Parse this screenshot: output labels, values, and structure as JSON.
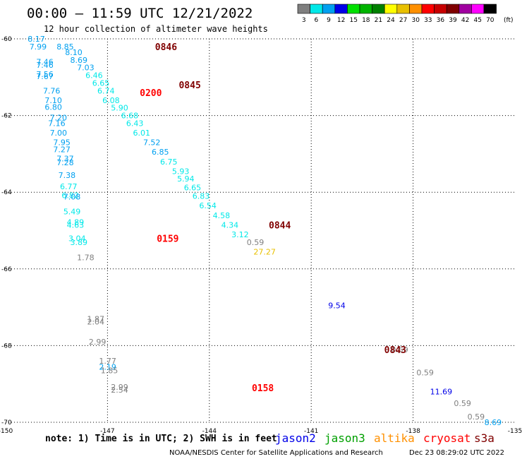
{
  "header": {
    "title": "00:00 — 11:59 UTC 12/21/2022",
    "subtitle": "12 hour collection of altimeter wave heights"
  },
  "colorbar": {
    "unit": "(ft)",
    "bins": [
      {
        "label": "3",
        "color": "#7f7f7f"
      },
      {
        "label": "6",
        "color": "#00e8e8"
      },
      {
        "label": "9",
        "color": "#00a0f0"
      },
      {
        "label": "12",
        "color": "#0000e8"
      },
      {
        "label": "15",
        "color": "#00e000"
      },
      {
        "label": "18",
        "color": "#00b400"
      },
      {
        "label": "21",
        "color": "#008000"
      },
      {
        "label": "24",
        "color": "#ffff00"
      },
      {
        "label": "27",
        "color": "#e8c000"
      },
      {
        "label": "30",
        "color": "#ff9000"
      },
      {
        "label": "33",
        "color": "#ff0000"
      },
      {
        "label": "36",
        "color": "#c80000"
      },
      {
        "label": "39",
        "color": "#800000"
      },
      {
        "label": "42",
        "color": "#a000a0"
      },
      {
        "label": "45",
        "color": "#ff00ff"
      },
      {
        "label": "70",
        "color": "#000000"
      }
    ]
  },
  "chart_data": {
    "type": "scatter",
    "xlim": [
      -150,
      -135
    ],
    "ylim": [
      -70,
      -60
    ],
    "x_ticks": [
      "-150",
      "-147",
      "-144",
      "-141",
      "-138",
      "-135"
    ],
    "y_ticks": [
      "-60",
      "-62",
      "-64",
      "-66",
      "-68",
      "-70"
    ],
    "grid": true,
    "points": [
      {
        "lon": -149.35,
        "lat": -60.0,
        "value": "8.17",
        "color": "#00a0f0"
      },
      {
        "lon": -149.3,
        "lat": -60.2,
        "value": "7.99",
        "color": "#00a0f0"
      },
      {
        "lon": -148.5,
        "lat": -60.2,
        "value": "8.85",
        "color": "#00a0f0"
      },
      {
        "lon": -148.25,
        "lat": -60.35,
        "value": "8.10",
        "color": "#00a0f0"
      },
      {
        "lon": -149.1,
        "lat": -60.6,
        "value": "7.46",
        "color": "#00a0f0"
      },
      {
        "lon": -149.1,
        "lat": -60.68,
        "value": "7.46",
        "color": "#00a0f0"
      },
      {
        "lon": -148.1,
        "lat": -60.55,
        "value": "8.69",
        "color": "#00a0f0"
      },
      {
        "lon": -147.9,
        "lat": -60.75,
        "value": "7.03",
        "color": "#00a0f0"
      },
      {
        "lon": -149.1,
        "lat": -60.92,
        "value": "7.56",
        "color": "#00a0f0"
      },
      {
        "lon": -149.1,
        "lat": -60.98,
        "value": "7.67",
        "color": "#00a0f0"
      },
      {
        "lon": -147.65,
        "lat": -60.95,
        "value": "6.46",
        "color": "#00e8e8"
      },
      {
        "lon": -147.45,
        "lat": -61.15,
        "value": "6.65",
        "color": "#00e8e8"
      },
      {
        "lon": -148.9,
        "lat": -61.35,
        "value": "7.76",
        "color": "#00a0f0"
      },
      {
        "lon": -147.3,
        "lat": -61.35,
        "value": "6.74",
        "color": "#00e8e8"
      },
      {
        "lon": -148.85,
        "lat": -61.6,
        "value": "7.10",
        "color": "#00a0f0"
      },
      {
        "lon": -147.15,
        "lat": -61.6,
        "value": "6.08",
        "color": "#00e8e8"
      },
      {
        "lon": -148.85,
        "lat": -61.78,
        "value": "6.80",
        "color": "#00a0f0"
      },
      {
        "lon": -146.9,
        "lat": -61.8,
        "value": "5.90",
        "color": "#00e8e8"
      },
      {
        "lon": -146.6,
        "lat": -62.0,
        "value": "6.68",
        "color": "#00e8e8"
      },
      {
        "lon": -148.7,
        "lat": -62.05,
        "value": "7.20",
        "color": "#00a0f0"
      },
      {
        "lon": -148.75,
        "lat": -62.2,
        "value": "7.16",
        "color": "#00a0f0"
      },
      {
        "lon": -146.45,
        "lat": -62.2,
        "value": "6.43",
        "color": "#00e8e8"
      },
      {
        "lon": -148.7,
        "lat": -62.45,
        "value": "7.00",
        "color": "#00a0f0"
      },
      {
        "lon": -146.25,
        "lat": -62.45,
        "value": "6.01",
        "color": "#00e8e8"
      },
      {
        "lon": -148.6,
        "lat": -62.7,
        "value": "7.95",
        "color": "#00a0f0"
      },
      {
        "lon": -145.95,
        "lat": -62.7,
        "value": "7.52",
        "color": "#00a0f0"
      },
      {
        "lon": -148.6,
        "lat": -62.88,
        "value": "7.27",
        "color": "#00a0f0"
      },
      {
        "lon": -145.7,
        "lat": -62.95,
        "value": "6.85",
        "color": "#00a0f0"
      },
      {
        "lon": -148.5,
        "lat": -63.12,
        "value": "7.37",
        "color": "#00a0f0"
      },
      {
        "lon": -148.5,
        "lat": -63.22,
        "value": "7.28",
        "color": "#00a0f0"
      },
      {
        "lon": -145.45,
        "lat": -63.2,
        "value": "6.75",
        "color": "#00e8e8"
      },
      {
        "lon": -145.1,
        "lat": -63.45,
        "value": "5.93",
        "color": "#00e8e8"
      },
      {
        "lon": -148.45,
        "lat": -63.55,
        "value": "7.38",
        "color": "#00a0f0"
      },
      {
        "lon": -144.95,
        "lat": -63.65,
        "value": "5.94",
        "color": "#00e8e8"
      },
      {
        "lon": -148.4,
        "lat": -63.85,
        "value": "6.77",
        "color": "#00e8e8"
      },
      {
        "lon": -144.75,
        "lat": -63.88,
        "value": "6.65",
        "color": "#00e8e8"
      },
      {
        "lon": -148.35,
        "lat": -64.08,
        "value": "6.82",
        "color": "#00e8e8"
      },
      {
        "lon": -148.3,
        "lat": -64.12,
        "value": "7.08",
        "color": "#00a0f0"
      },
      {
        "lon": -144.5,
        "lat": -64.1,
        "value": "6.83",
        "color": "#00e8e8"
      },
      {
        "lon": -144.3,
        "lat": -64.35,
        "value": "6.54",
        "color": "#00e8e8"
      },
      {
        "lon": -148.3,
        "lat": -64.5,
        "value": "5.49",
        "color": "#00e8e8"
      },
      {
        "lon": -143.9,
        "lat": -64.6,
        "value": "4.58",
        "color": "#00e8e8"
      },
      {
        "lon": -148.2,
        "lat": -64.78,
        "value": "4.89",
        "color": "#00e8e8"
      },
      {
        "lon": -148.2,
        "lat": -64.85,
        "value": "4.63",
        "color": "#00e8e8"
      },
      {
        "lon": -143.65,
        "lat": -64.85,
        "value": "4.34",
        "color": "#00e8e8"
      },
      {
        "lon": -143.35,
        "lat": -65.1,
        "value": "3.12",
        "color": "#00e8e8"
      },
      {
        "lon": -148.15,
        "lat": -65.2,
        "value": "3.04",
        "color": "#00e8e8"
      },
      {
        "lon": -148.1,
        "lat": -65.3,
        "value": "3.89",
        "color": "#00e8e8"
      },
      {
        "lon": -142.9,
        "lat": -65.3,
        "value": "0.59",
        "color": "#7f7f7f"
      },
      {
        "lon": -142.7,
        "lat": -65.55,
        "value": "27.27",
        "color": "#e8c000"
      },
      {
        "lon": -147.9,
        "lat": -65.7,
        "value": "1.78",
        "color": "#7f7f7f"
      },
      {
        "lon": -147.6,
        "lat": -67.3,
        "value": "1.87",
        "color": "#7f7f7f"
      },
      {
        "lon": -147.6,
        "lat": -67.38,
        "value": "2.04",
        "color": "#7f7f7f"
      },
      {
        "lon": -140.5,
        "lat": -66.95,
        "value": "9.54",
        "color": "#0000e8"
      },
      {
        "lon": -147.55,
        "lat": -67.9,
        "value": "2.99",
        "color": "#7f7f7f"
      },
      {
        "lon": -138.65,
        "lat": -68.1,
        "value": "0.59",
        "color": "#7f7f7f"
      },
      {
        "lon": -147.25,
        "lat": -68.4,
        "value": "1.77",
        "color": "#7f7f7f"
      },
      {
        "lon": -147.25,
        "lat": -68.55,
        "value": "2.19",
        "color": "#00a0f0"
      },
      {
        "lon": -147.2,
        "lat": -68.65,
        "value": "1.85",
        "color": "#7f7f7f"
      },
      {
        "lon": -137.9,
        "lat": -68.7,
        "value": "0.59",
        "color": "#7f7f7f"
      },
      {
        "lon": -146.9,
        "lat": -69.08,
        "value": "2.99",
        "color": "#7f7f7f"
      },
      {
        "lon": -146.9,
        "lat": -69.15,
        "value": "2.54",
        "color": "#7f7f7f"
      },
      {
        "lon": -137.5,
        "lat": -69.2,
        "value": "11.69",
        "color": "#0000e8"
      },
      {
        "lon": -136.8,
        "lat": -69.5,
        "value": "0.59",
        "color": "#7f7f7f"
      },
      {
        "lon": -136.4,
        "lat": -69.85,
        "value": "0.59",
        "color": "#7f7f7f"
      },
      {
        "lon": -135.9,
        "lat": -70.0,
        "value": "8.69",
        "color": "#00a0f0"
      }
    ],
    "pass_labels": [
      {
        "lon": -145.6,
        "lat": -60.2,
        "text": "0846",
        "color": "#800000"
      },
      {
        "lon": -144.9,
        "lat": -61.2,
        "text": "0845",
        "color": "#800000"
      },
      {
        "lon": -146.05,
        "lat": -61.4,
        "text": "0200",
        "color": "#ff0000"
      },
      {
        "lon": -142.25,
        "lat": -64.85,
        "text": "0844",
        "color": "#800000"
      },
      {
        "lon": -145.55,
        "lat": -65.2,
        "text": "0159",
        "color": "#ff0000"
      },
      {
        "lon": -142.75,
        "lat": -69.1,
        "text": "0158",
        "color": "#ff0000"
      },
      {
        "lon": -138.85,
        "lat": -68.1,
        "text": "0843",
        "color": "#800000"
      }
    ]
  },
  "note": "note: 1) Time is in UTC; 2) SWH is in feet",
  "satellites": [
    {
      "name": "jason2",
      "color": "#0000e8"
    },
    {
      "name": "jason3",
      "color": "#00a000"
    },
    {
      "name": "altika",
      "color": "#ff9000"
    },
    {
      "name": "cryosat",
      "color": "#ff0000"
    },
    {
      "name": "s3a",
      "color": "#800000"
    }
  ],
  "footer": {
    "center": "NOAA/NESDIS Center for Satellite Applications and Research",
    "timestamp": "Dec 23 08:29:02 UTC 2022"
  }
}
